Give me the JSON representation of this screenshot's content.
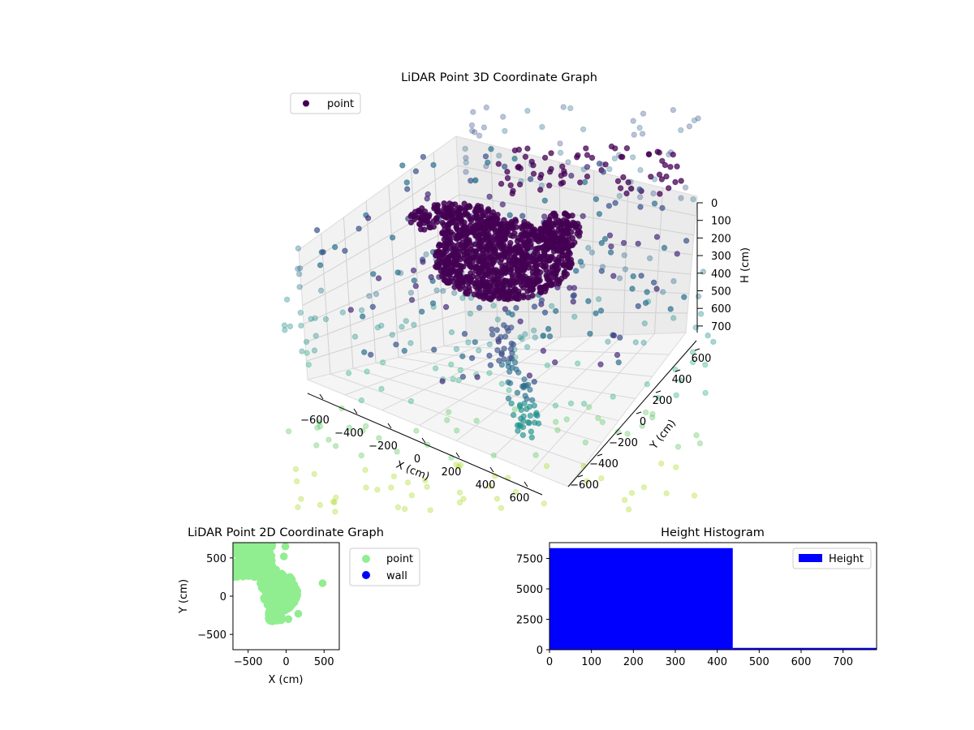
{
  "colors": {
    "viridis_dark": "#440154",
    "viridis_mid": "#3b528b",
    "viridis_teal": "#21918c",
    "viridis_light": "#5ec962",
    "point_green": "#90ee90",
    "wall_blue": "#0000ff",
    "hist_blue": "#0000ff",
    "pane": "#f2f2f2"
  },
  "chart_data": [
    {
      "type": "scatter",
      "title": "LiDAR Point 3D Coordinate Graph",
      "xlabel": "X (cm)",
      "ylabel": "Y (cm)",
      "zlabel": "H (cm)",
      "x_ticks": [
        "−600",
        "−400",
        "−200",
        "0",
        "200",
        "400",
        "600"
      ],
      "y_ticks": [
        "−600",
        "−400",
        "−200",
        "0",
        "200",
        "400",
        "600"
      ],
      "z_ticks": [
        "0",
        "100",
        "200",
        "300",
        "400",
        "500",
        "600",
        "700"
      ],
      "legend": [
        "point"
      ],
      "legend_placement": "upper-left",
      "colormap": "viridis"
    },
    {
      "type": "scatter",
      "title": "LiDAR Point 2D Coordinate Graph",
      "xlabel": "X (cm)",
      "ylabel": "Y (cm)",
      "xlim": [
        -700,
        700
      ],
      "ylim": [
        -700,
        700
      ],
      "x_ticks": [
        "−500",
        "0",
        "500"
      ],
      "y_ticks": [
        "−500",
        "0",
        "500"
      ],
      "series": [
        {
          "name": "point",
          "color": "#90ee90"
        },
        {
          "name": "wall",
          "color": "#0000ff"
        }
      ],
      "legend_placement": "outside-right"
    },
    {
      "type": "bar",
      "title": "Height Histogram",
      "xlim": [
        0,
        780
      ],
      "ylim": [
        0,
        8800
      ],
      "x_ticks": [
        "0",
        "100",
        "200",
        "300",
        "400",
        "500",
        "600",
        "700"
      ],
      "y_ticks": [
        "0",
        "2500",
        "5000",
        "7500"
      ],
      "bins": [
        {
          "start": 0,
          "end": 437,
          "count": 8350
        },
        {
          "start": 437,
          "end": 780,
          "count": 150
        }
      ],
      "series": [
        {
          "name": "Height",
          "color": "#0000ff"
        }
      ],
      "legend_placement": "upper-right"
    }
  ]
}
